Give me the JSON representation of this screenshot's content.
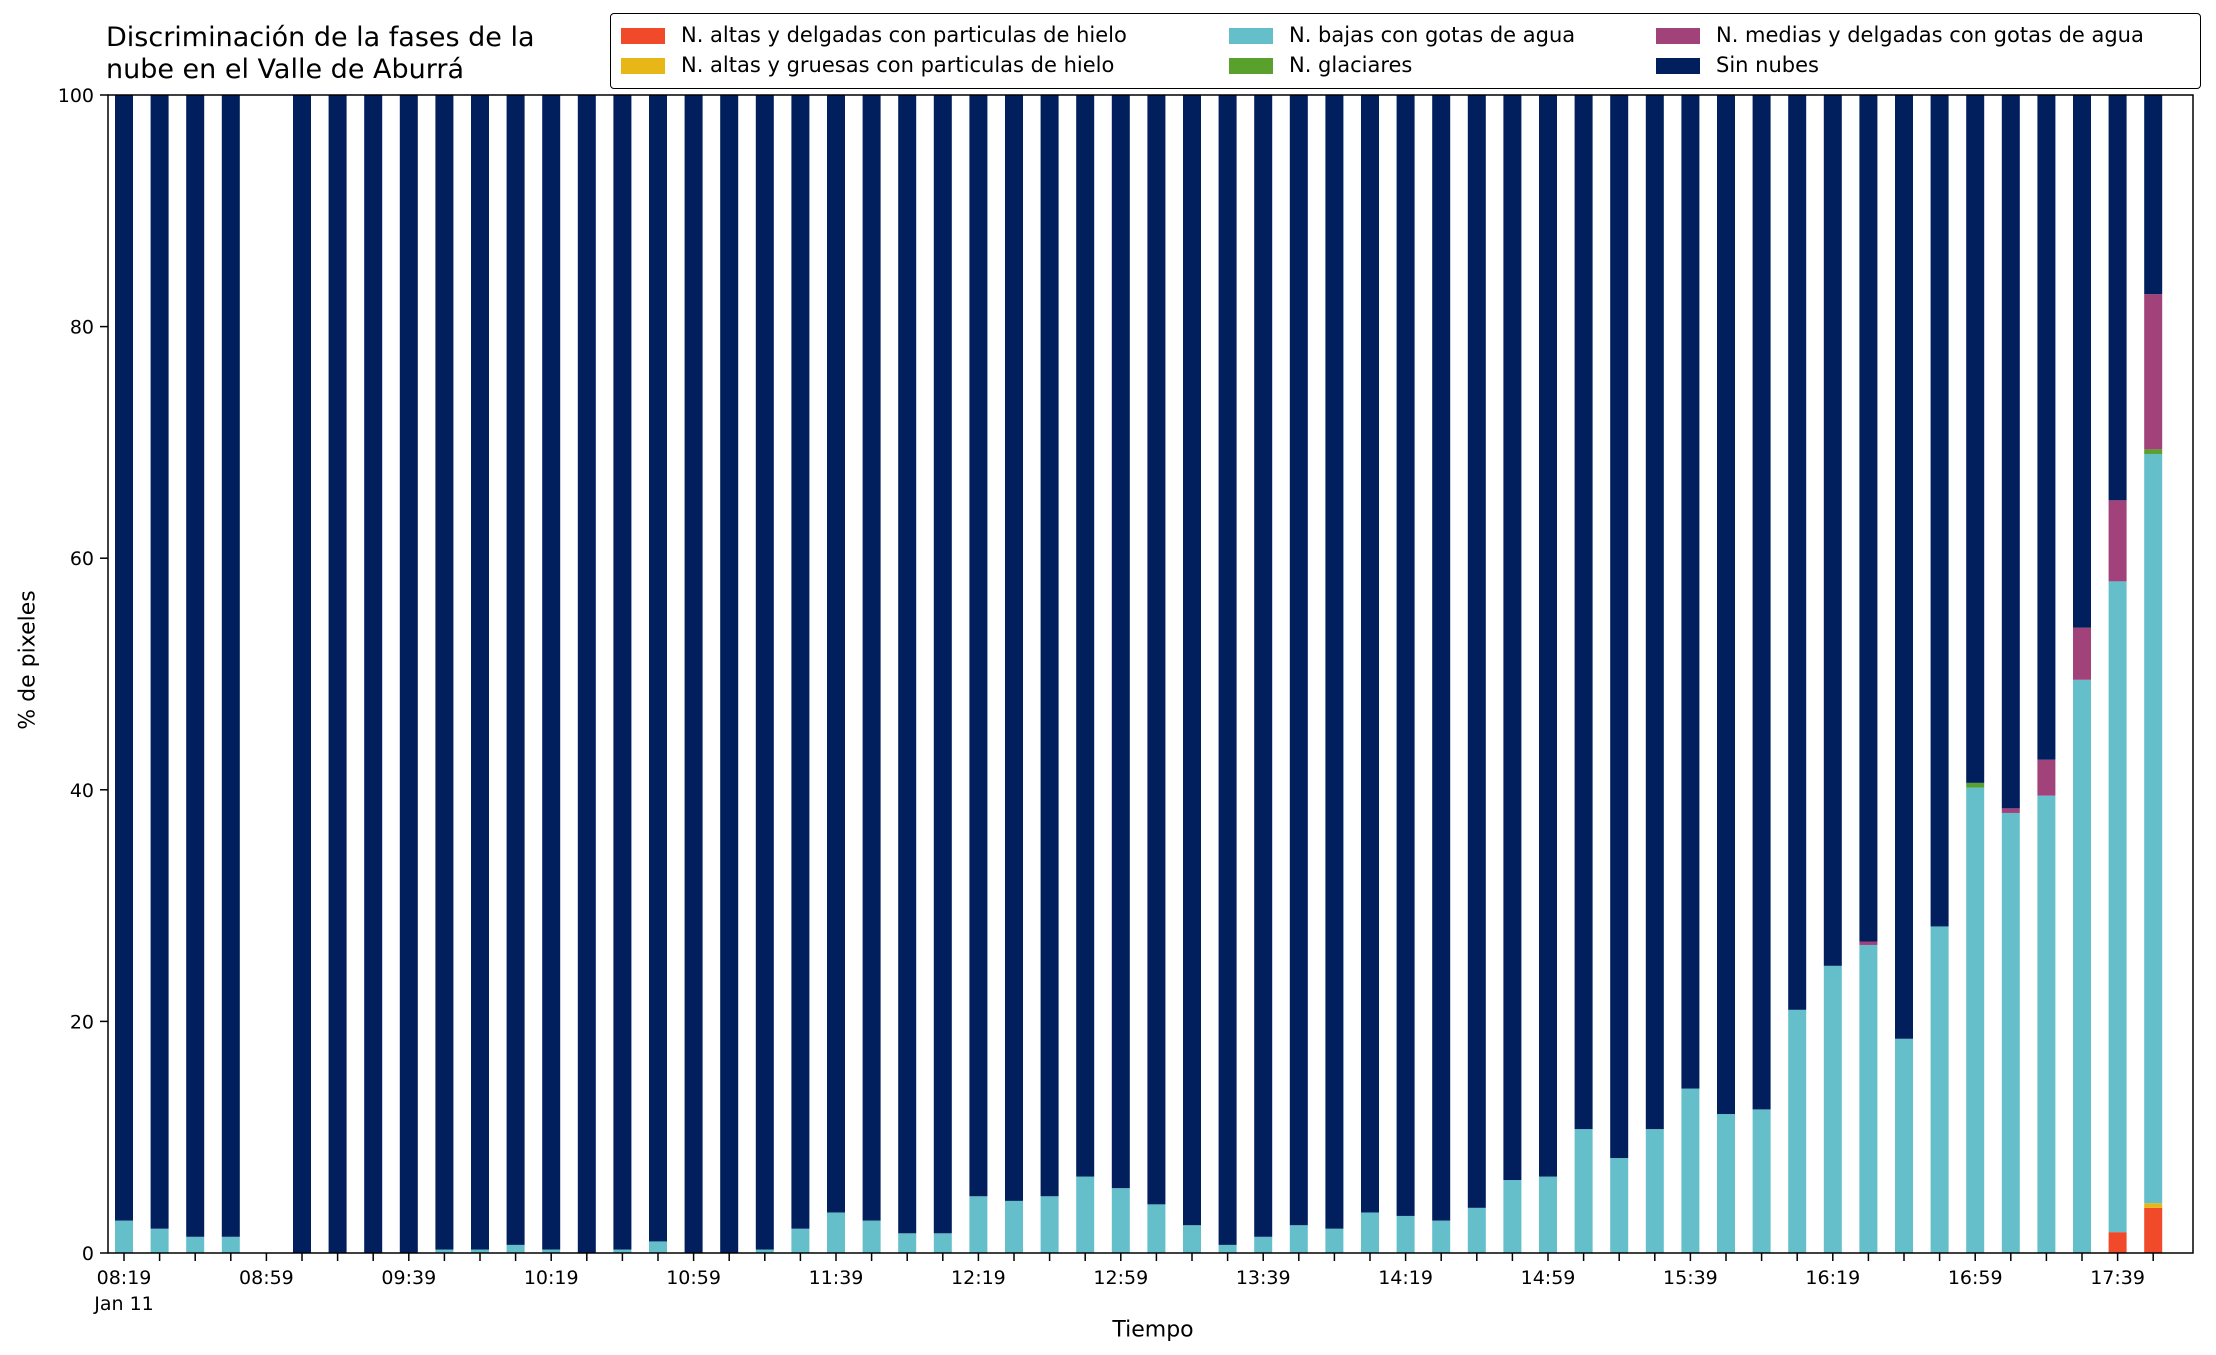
{
  "chart_data": {
    "type": "bar",
    "stacked": true,
    "title_lines": [
      "Discriminación de la fases de la",
      "nube en el Valle de Aburrá"
    ],
    "xlabel": "Tiempo",
    "ylabel": "% de pixeles",
    "ylim": [
      0,
      100
    ],
    "yticks": [
      "0",
      "20",
      "40",
      "60",
      "80",
      "100"
    ],
    "xtick_labels": [
      "08:19",
      "08:59",
      "09:39",
      "10:19",
      "10:59",
      "11:39",
      "12:19",
      "12:59",
      "13:39",
      "14:19",
      "14:59",
      "15:39",
      "16:19",
      "16:59",
      "17:39"
    ],
    "xtick_sublabel": "Jan 11",
    "legend_position": "top-right",
    "categories": [
      "08:19",
      "08:29",
      "08:39",
      "08:49",
      "08:59",
      "09:09",
      "09:19",
      "09:29",
      "09:39",
      "09:49",
      "09:59",
      "10:09",
      "10:19",
      "10:29",
      "10:39",
      "10:49",
      "10:59",
      "11:09",
      "11:19",
      "11:29",
      "11:39",
      "11:49",
      "11:59",
      "12:09",
      "12:19",
      "12:29",
      "12:39",
      "12:49",
      "12:59",
      "13:09",
      "13:19",
      "13:29",
      "13:39",
      "13:49",
      "13:59",
      "14:09",
      "14:19",
      "14:29",
      "14:39",
      "14:49",
      "14:59",
      "15:09",
      "15:19",
      "15:29",
      "15:39",
      "15:49",
      "15:59",
      "16:09",
      "16:19",
      "16:29",
      "16:39",
      "16:49",
      "16:59",
      "17:09",
      "17:19",
      "17:29",
      "17:39",
      "17:49"
    ],
    "series": [
      {
        "name": "N. altas y delgadas con particulas de hielo",
        "color": "#f04a2a",
        "values": [
          0,
          0,
          0,
          0,
          null,
          0,
          0,
          0,
          0,
          0,
          0,
          0,
          0,
          0,
          0,
          0,
          0,
          0,
          0,
          0,
          0,
          0,
          0,
          0,
          0,
          0,
          0,
          0,
          0,
          0,
          0,
          0,
          0,
          0,
          0,
          0,
          0,
          0,
          0,
          0,
          0,
          0,
          0,
          0,
          0,
          0,
          0,
          0,
          0,
          0,
          0,
          0,
          0,
          0,
          0,
          0,
          1.8,
          3.9
        ]
      },
      {
        "name": "N. altas y gruesas con particulas de hielo",
        "color": "#e6b716",
        "values": [
          0,
          0,
          0,
          0,
          null,
          0,
          0,
          0,
          0,
          0,
          0,
          0,
          0,
          0,
          0,
          0,
          0,
          0,
          0,
          0,
          0,
          0,
          0,
          0,
          0,
          0,
          0,
          0,
          0,
          0,
          0,
          0,
          0,
          0,
          0,
          0,
          0,
          0,
          0,
          0,
          0,
          0,
          0,
          0,
          0,
          0,
          0,
          0,
          0,
          0,
          0,
          0,
          0,
          0,
          0,
          0,
          0,
          0.4
        ]
      },
      {
        "name": "N. bajas con gotas de agua",
        "color": "#64bfcb",
        "values": [
          2.8,
          2.1,
          1.4,
          1.4,
          null,
          0,
          0,
          0,
          0,
          0.3,
          0.3,
          0.7,
          0.3,
          0,
          0.3,
          1.0,
          0,
          0,
          0.3,
          2.1,
          3.5,
          2.8,
          1.7,
          1.7,
          4.9,
          4.5,
          4.9,
          6.6,
          5.6,
          4.2,
          2.4,
          0.7,
          1.4,
          2.4,
          2.1,
          3.5,
          3.2,
          2.8,
          3.9,
          6.3,
          6.6,
          10.7,
          8.2,
          10.7,
          14.2,
          12.0,
          12.4,
          21.0,
          24.8,
          26.6,
          18.5,
          28.2,
          40.2,
          38.0,
          39.5,
          49.5,
          56.2,
          64.7
        ]
      },
      {
        "name": "N. glaciares",
        "color": "#5aa02c",
        "values": [
          0,
          0,
          0,
          0,
          null,
          0,
          0,
          0,
          0,
          0,
          0,
          0,
          0,
          0,
          0,
          0,
          0,
          0,
          0,
          0,
          0,
          0,
          0,
          0,
          0,
          0,
          0,
          0,
          0,
          0,
          0,
          0,
          0,
          0,
          0,
          0,
          0,
          0,
          0,
          0,
          0,
          0,
          0,
          0,
          0,
          0,
          0,
          0,
          0,
          0,
          0,
          0,
          0.4,
          0,
          0,
          0,
          0,
          0.4
        ]
      },
      {
        "name": "N. medias y delgadas con gotas de agua",
        "color": "#a2427a",
        "values": [
          0,
          0,
          0,
          0,
          null,
          0,
          0,
          0,
          0,
          0,
          0,
          0,
          0,
          0,
          0,
          0,
          0,
          0,
          0,
          0,
          0,
          0,
          0,
          0,
          0,
          0,
          0,
          0,
          0,
          0,
          0,
          0,
          0,
          0,
          0,
          0,
          0,
          0,
          0,
          0,
          0,
          0,
          0,
          0,
          0,
          0,
          0,
          0,
          0,
          0.3,
          0,
          0,
          0,
          0.4,
          3.1,
          4.5,
          7.0,
          13.4
        ]
      },
      {
        "name": "Sin nubes",
        "color": "#001f5c",
        "values": [
          97.2,
          97.9,
          98.6,
          98.6,
          null,
          100,
          100,
          100,
          100,
          99.7,
          99.7,
          99.3,
          99.7,
          100,
          99.7,
          99.0,
          100,
          100,
          99.7,
          97.9,
          96.5,
          97.2,
          98.3,
          98.3,
          95.1,
          95.5,
          95.1,
          93.4,
          94.4,
          95.8,
          97.6,
          99.3,
          98.6,
          97.6,
          97.9,
          96.5,
          96.8,
          97.2,
          96.1,
          93.7,
          93.4,
          89.3,
          91.8,
          89.3,
          85.8,
          88.0,
          87.6,
          79.0,
          75.2,
          73.1,
          81.5,
          71.8,
          59.4,
          61.6,
          57.4,
          46.0,
          35.0,
          17.2
        ]
      }
    ]
  }
}
